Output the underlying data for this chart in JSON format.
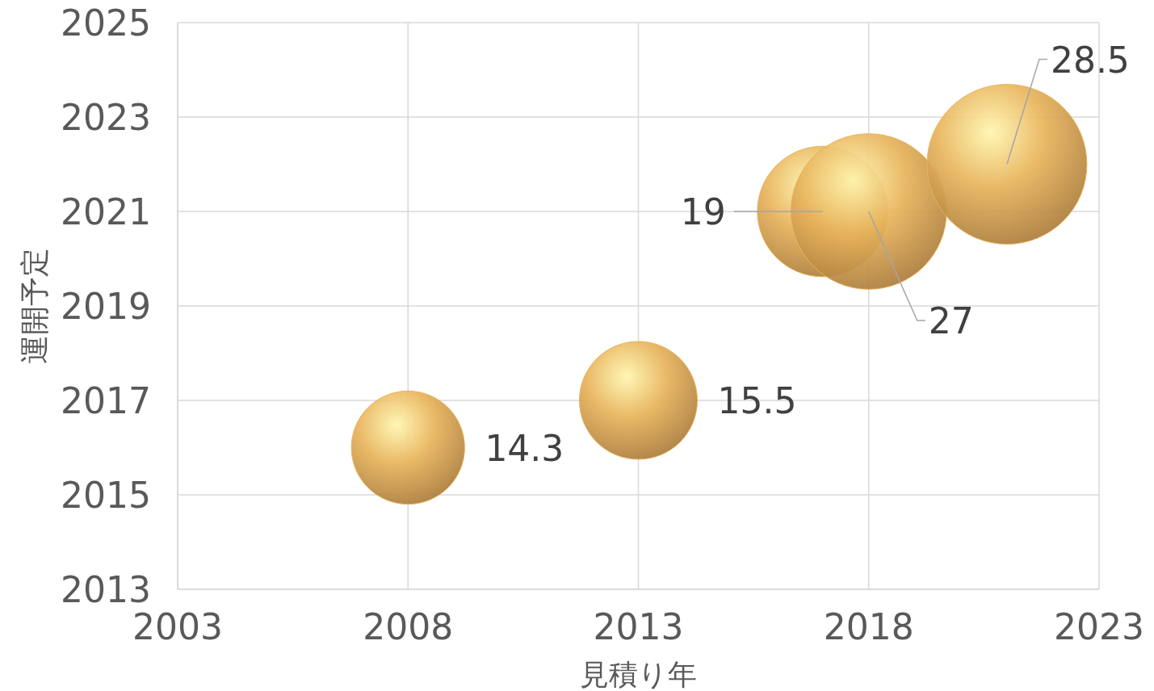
{
  "chart_data": {
    "type": "bubble",
    "xlabel": "見積り年",
    "ylabel": "運開予定",
    "x": [
      2008,
      2013,
      2017,
      2018,
      2021
    ],
    "values": [
      2016,
      2017,
      2021,
      2021,
      2022
    ],
    "sizes": [
      14.3,
      15.5,
      19,
      27,
      28.5
    ],
    "value_labels": [
      "14.3",
      "15.5",
      "19",
      "27",
      "28.5"
    ],
    "color": "#e8b45c",
    "xlim": [
      2003,
      2023
    ],
    "xticks": [
      2003,
      2008,
      2013,
      2018,
      2023
    ],
    "ylim": [
      2013,
      2025
    ],
    "yticks": [
      2013,
      2015,
      2017,
      2019,
      2021,
      2023,
      2025
    ],
    "grid": true
  }
}
